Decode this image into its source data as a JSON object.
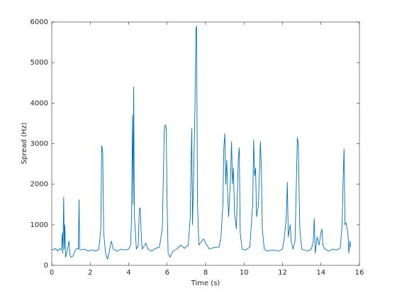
{
  "chart_data": {
    "type": "line",
    "xlabel": "Time (s)",
    "ylabel": "Spread (Hz)",
    "color": "#0072bd",
    "xlim": [
      0,
      16
    ],
    "xticks": [
      0,
      2,
      4,
      6,
      8,
      10,
      12,
      14,
      16
    ],
    "ylim": [
      0,
      6000
    ],
    "yticks": [
      0,
      1000,
      2000,
      3000,
      4000,
      5000,
      6000
    ],
    "grid": false,
    "x": [
      0,
      0.1,
      0.2,
      0.3,
      0.4,
      0.5,
      0.55,
      0.58,
      0.62,
      0.65,
      0.68,
      0.72,
      0.8,
      0.9,
      0.95,
      1.0,
      1.1,
      1.2,
      1.3,
      1.38,
      1.42,
      1.45,
      1.5,
      1.7,
      1.9,
      2.1,
      2.3,
      2.45,
      2.55,
      2.6,
      2.65,
      2.7,
      2.8,
      2.9,
      3.0,
      3.1,
      3.2,
      3.4,
      3.6,
      3.8,
      4.0,
      4.1,
      4.15,
      4.2,
      4.23,
      4.26,
      4.3,
      4.4,
      4.5,
      4.55,
      4.6,
      4.65,
      4.7,
      4.9,
      5.0,
      5.2,
      5.4,
      5.6,
      5.75,
      5.85,
      5.9,
      5.95,
      6.0,
      6.05,
      6.15,
      6.3,
      6.5,
      6.7,
      6.9,
      7.1,
      7.2,
      7.28,
      7.32,
      7.38,
      7.45,
      7.5,
      7.53,
      7.58,
      7.65,
      7.8,
      7.9,
      8.0,
      8.2,
      8.5,
      8.7,
      8.8,
      8.9,
      8.95,
      9.0,
      9.05,
      9.1,
      9.15,
      9.2,
      9.3,
      9.35,
      9.4,
      9.45,
      9.5,
      9.6,
      9.7,
      9.75,
      9.8,
      9.9,
      10.1,
      10.3,
      10.45,
      10.5,
      10.55,
      10.6,
      10.65,
      10.75,
      10.85,
      10.9,
      10.95,
      11.05,
      11.2,
      11.5,
      11.8,
      12.0,
      12.1,
      12.2,
      12.25,
      12.3,
      12.4,
      12.45,
      12.55,
      12.65,
      12.72,
      12.77,
      12.82,
      12.9,
      13.0,
      13.3,
      13.5,
      13.6,
      13.65,
      13.7,
      13.8,
      13.9,
      14.0,
      14.05,
      14.1,
      14.2,
      14.4,
      14.6,
      14.8,
      15.0,
      15.1,
      15.15,
      15.2,
      15.25,
      15.3,
      15.4,
      15.45,
      15.5,
      15.55
    ],
    "values": [
      400,
      380,
      420,
      350,
      410,
      380,
      800,
      300,
      1680,
      400,
      1000,
      200,
      350,
      600,
      250,
      200,
      230,
      350,
      420,
      400,
      1620,
      400,
      380,
      400,
      350,
      380,
      350,
      400,
      900,
      2950,
      2800,
      800,
      300,
      150,
      350,
      600,
      400,
      350,
      400,
      380,
      400,
      500,
      1200,
      3700,
      1500,
      4400,
      1200,
      400,
      500,
      1350,
      1420,
      800,
      400,
      550,
      400,
      350,
      420,
      450,
      900,
      3300,
      3470,
      3400,
      1500,
      300,
      200,
      350,
      400,
      500,
      420,
      500,
      1200,
      3370,
      1000,
      2200,
      4000,
      5850,
      5900,
      1500,
      500,
      600,
      650,
      550,
      400,
      450,
      450,
      700,
      1500,
      2900,
      3250,
      2000,
      2600,
      1700,
      1200,
      2200,
      3050,
      2000,
      2400,
      1300,
      900,
      2600,
      2900,
      800,
      400,
      380,
      450,
      1500,
      3100,
      2200,
      2400,
      1200,
      1500,
      3050,
      2400,
      900,
      400,
      350,
      380,
      350,
      400,
      700,
      1200,
      2050,
      700,
      1000,
      600,
      400,
      600,
      2000,
      3150,
      3000,
      900,
      400,
      350,
      400,
      600,
      1150,
      300,
      700,
      500,
      800,
      900,
      500,
      400,
      350,
      400,
      380,
      420,
      1000,
      2050,
      2870,
      1000,
      1050,
      800,
      300,
      600,
      450
    ]
  }
}
